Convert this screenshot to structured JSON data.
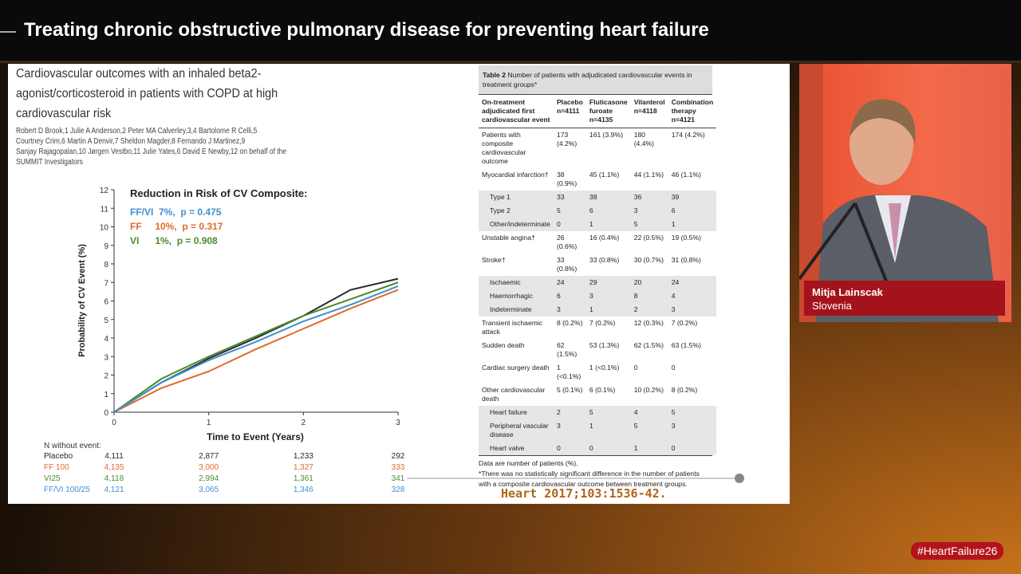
{
  "header": {
    "title": "Treating chronic obstructive pulmonary disease for preventing heart failure"
  },
  "slide": {
    "paper_title": [
      "Cardiovascular outcomes with an inhaled beta2-",
      "agonist/corticosteroid in patients with COPD at high",
      "cardiovascular risk"
    ],
    "authors": [
      "Robert D Brook,1 Julie A Anderson,2 Peter MA Calverley,3,4 Bartolome R Celli,5",
      "Courtney Crim,6 Martin A Denvir,7 Sheldon Magder,8 Fernando J Martinez,9",
      "Sanjay Rajagopalan,10 Jørgen Vestbo,11 Julie Yates,6 David E Newby,12 on behalf of the",
      "SUMMIT Investigators"
    ],
    "citation": "Heart 2017;103:1536-42."
  },
  "chart_data": {
    "type": "line",
    "title": "Reduction in Risk of CV Composite:",
    "annotations": [
      {
        "text": "FF/VI  7%,  p = 0.475",
        "color": "#3f8fd0"
      },
      {
        "text": "FF     10%,  p = 0.317",
        "color": "#e06a2c"
      },
      {
        "text": "VI      1%,  p = 0.908",
        "color": "#4a8a2e"
      }
    ],
    "x_label": "Time to Event (Years)",
    "y_label": "Probability of CV Event (%)",
    "x": [
      0,
      0.5,
      1,
      1.5,
      2,
      2.5,
      3
    ],
    "xlim": [
      0,
      3
    ],
    "xticks": [
      0,
      1,
      2,
      3
    ],
    "ylim": [
      0,
      12
    ],
    "yticks": [
      0,
      1,
      2,
      3,
      4,
      5,
      6,
      7,
      8,
      9,
      10,
      11,
      12
    ],
    "series": [
      {
        "name": "Placebo",
        "color": "#2a2a2a",
        "values": [
          0,
          1.6,
          2.9,
          4.0,
          5.2,
          6.6,
          7.2
        ]
      },
      {
        "name": "FF 100",
        "color": "#e06a2c",
        "values": [
          0,
          1.3,
          2.2,
          3.4,
          4.5,
          5.6,
          6.6
        ]
      },
      {
        "name": "VI25",
        "color": "#4a8a2e",
        "values": [
          0,
          1.8,
          3.0,
          4.1,
          5.2,
          6.1,
          7.0
        ]
      },
      {
        "name": "FF/VI 100/25",
        "color": "#3f8fd0",
        "values": [
          0,
          1.6,
          2.8,
          3.8,
          4.9,
          5.8,
          6.8
        ]
      }
    ],
    "at_risk": {
      "title": "N without event:",
      "rows": [
        [
          "4,111",
          "2,877",
          "1,233",
          "292"
        ],
        [
          "4,135",
          "3,000",
          "1,327",
          "333"
        ],
        [
          "4,118",
          "2,994",
          "1,361",
          "341"
        ],
        [
          "4,121",
          "3,065",
          "1,346",
          "328"
        ]
      ]
    }
  },
  "table": {
    "title": "Table 2",
    "caption": "Number of patients with adjudicated cardiovascular events in treatment groups*",
    "columns": [
      "On-treatment adjudicated first cardiovascular event",
      "Placebo n=4111",
      "Fluticasone furoate n=4135",
      "Vilanterol n=4118",
      "Combination therapy n=4121"
    ],
    "rows": [
      [
        "Patients with composite cardiovascular outcome",
        "173 (4.2%)",
        "161 (3.9%)",
        "180 (4.4%)",
        "174 (4.2%)"
      ],
      [
        "Myocardial infarction†",
        "38 (0.9%)",
        "45 (1.1%)",
        "44 (1.1%)",
        "46 (1.1%)"
      ],
      [
        "Type 1",
        "33",
        "38",
        "36",
        "39"
      ],
      [
        "Type 2",
        "5",
        "6",
        "3",
        "6"
      ],
      [
        "Other/indeterminate",
        "0",
        "1",
        "5",
        "1"
      ],
      [
        "Unstable angina†",
        "26 (0.6%)",
        "16 (0.4%)",
        "22 (0.5%)",
        "19 (0.5%)"
      ],
      [
        "Stroke†",
        "33 (0.8%)",
        "33 (0.8%)",
        "30 (0.7%)",
        "31 (0.8%)"
      ],
      [
        "Ischaemic",
        "24",
        "29",
        "20",
        "24"
      ],
      [
        "Haemorrhagic",
        "6",
        "3",
        "8",
        "4"
      ],
      [
        "Indeterminate",
        "3",
        "1",
        "2",
        "3"
      ],
      [
        "Transient ischaemic attack",
        "8 (0.2%)",
        "7 (0.2%)",
        "12 (0.3%)",
        "7 (0.2%)"
      ],
      [
        "Sudden death",
        "62 (1.5%)",
        "53 (1.3%)",
        "62 (1.5%)",
        "63 (1.5%)"
      ],
      [
        "Cardiac surgery death",
        "1 (<0.1%)",
        "1 (<0.1%)",
        "0",
        "0"
      ],
      [
        "Other cardiovascular death",
        "5 (0.1%)",
        "6 (0.1%)",
        "10 (0.2%)",
        "8 (0.2%)"
      ],
      [
        "Heart failure",
        "2",
        "5",
        "4",
        "5"
      ],
      [
        "Peripheral vascular disease",
        "3",
        "1",
        "5",
        "3"
      ],
      [
        "Heart valve",
        "0",
        "0",
        "1",
        "0"
      ]
    ],
    "notes": [
      "Data are number of patients (%).",
      "*There was no statistically significant difference in the number of patients with a composite cardiovascular outcome between treatment groups."
    ]
  },
  "speaker": {
    "name": "Mitja Lainscak",
    "country": "Slovenia"
  },
  "hashtag": "#HeartFailure26"
}
